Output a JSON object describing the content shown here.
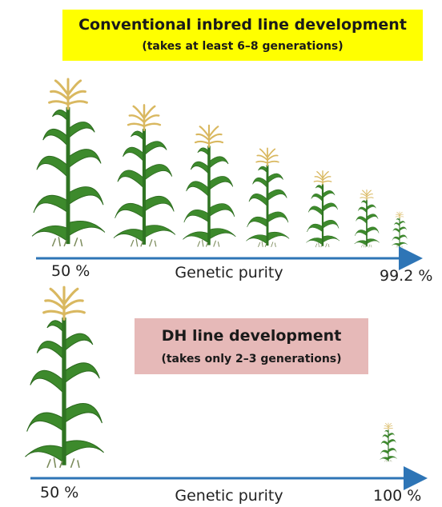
{
  "conventional": {
    "title": "Conventional inbred line development",
    "subtitle": "(takes at least 6–8 generations)",
    "axis": {
      "start": "50 %",
      "label": "Genetic purity",
      "end": "99.2 %"
    }
  },
  "dh": {
    "title": "DH line development",
    "subtitle": "(takes only 2–3 generations)",
    "axis": {
      "start": "50 %",
      "label": "Genetic purity",
      "end": "100 %"
    }
  }
}
